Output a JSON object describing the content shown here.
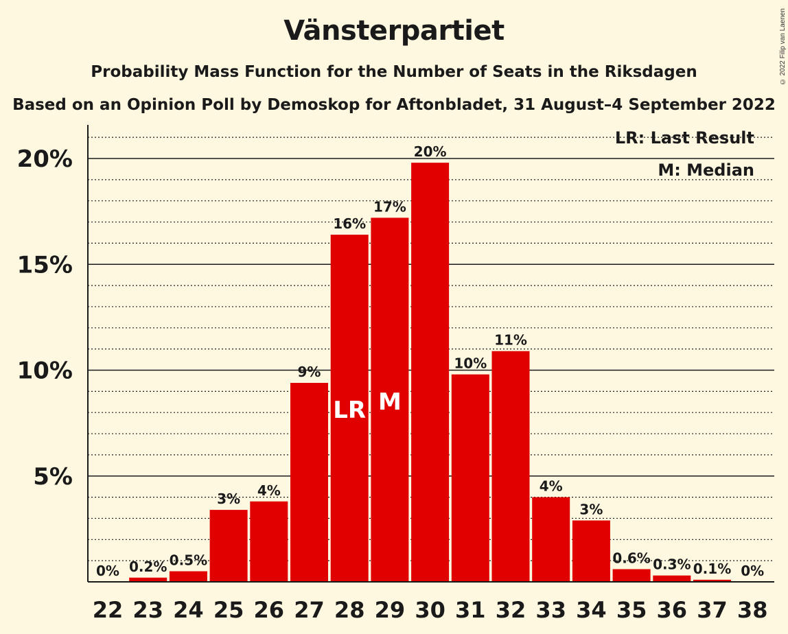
{
  "title": "Vänsterpartiet",
  "subtitle": "Probability Mass Function for the Number of Seats in the Riksdagen",
  "subtitle2": "Based on an Opinion Poll by Demoskop for Aftonbladet, 31 August–4 September 2022",
  "copyright": "© 2022 Filip van Laenen",
  "legend": {
    "last_result": "LR: Last Result",
    "median": "M: Median"
  },
  "colors": {
    "bar": "#e00000",
    "background": "#fff8e1",
    "text": "#1a1a1a"
  },
  "chart_data": {
    "type": "bar",
    "categories": [
      "22",
      "23",
      "24",
      "25",
      "26",
      "27",
      "28",
      "29",
      "30",
      "31",
      "32",
      "33",
      "34",
      "35",
      "36",
      "37",
      "38"
    ],
    "values": [
      0,
      0.2,
      0.5,
      3.4,
      3.8,
      9.4,
      16.4,
      17.2,
      19.8,
      9.8,
      10.9,
      4.0,
      2.9,
      0.6,
      0.3,
      0.1,
      0
    ],
    "data_labels": [
      "0%",
      "0.2%",
      "0.5%",
      "3%",
      "4%",
      "9%",
      "16%",
      "17%",
      "20%",
      "10%",
      "11%",
      "4%",
      "3%",
      "0.6%",
      "0.3%",
      "0.1%",
      "0%"
    ],
    "bar_markers": {
      "28": "LR",
      "29": "M"
    },
    "y_ticks": [
      5,
      10,
      15,
      20
    ],
    "y_tick_labels": [
      "5%",
      "10%",
      "15%",
      "20%"
    ],
    "ylim": [
      0,
      21.5
    ],
    "grid": "major solid, minor dotted",
    "legend_position": "top-right"
  }
}
